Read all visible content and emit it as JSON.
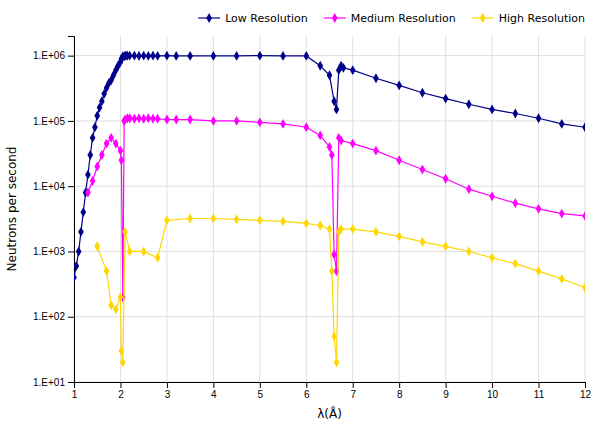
{
  "chart_data": {
    "type": "line",
    "xlabel": "λ(Å)",
    "ylabel": "Neutrons per second",
    "xlim": [
      1,
      12
    ],
    "ylim": [
      10,
      2000000
    ],
    "log": "y",
    "xticks": [
      1,
      2,
      3,
      4,
      5,
      6,
      7,
      8,
      9,
      10,
      11,
      12
    ],
    "yticks": [
      {
        "value": 10,
        "label": "1.E+01"
      },
      {
        "value": 100,
        "label": "1.E+02"
      },
      {
        "value": 1000,
        "label": "1.E+03"
      },
      {
        "value": 10000,
        "label": "1.E+04"
      },
      {
        "value": 100000,
        "label": "1.E+05"
      },
      {
        "value": 1000000,
        "label": "1.E+06"
      }
    ],
    "grid": true,
    "legend": "upper right",
    "marker": "diamond",
    "series": [
      {
        "name": "Low Resolution",
        "color": "#00008B",
        "x": [
          1.0,
          1.05,
          1.1,
          1.15,
          1.2,
          1.25,
          1.3,
          1.35,
          1.4,
          1.45,
          1.5,
          1.55,
          1.6,
          1.65,
          1.7,
          1.75,
          1.8,
          1.85,
          1.9,
          1.95,
          2.0,
          2.02,
          2.05,
          2.08,
          2.1,
          2.12,
          2.15,
          2.2,
          2.3,
          2.4,
          2.5,
          2.6,
          2.7,
          2.8,
          3.0,
          3.2,
          3.5,
          4.0,
          4.5,
          5.0,
          5.5,
          6.0,
          6.3,
          6.5,
          6.6,
          6.65,
          6.7,
          6.75,
          6.8,
          7.0,
          7.5,
          8.0,
          8.5,
          9.0,
          9.5,
          10.0,
          10.5,
          11.0,
          11.5,
          12.0
        ],
        "values": [
          400,
          600,
          1000,
          2000,
          4000,
          8000,
          15000,
          30000,
          55000,
          80000,
          120000,
          160000,
          200000,
          260000,
          320000,
          380000,
          420000,
          500000,
          600000,
          700000,
          800000,
          900000,
          970000,
          980000,
          990000,
          1000000,
          1000000,
          1000000,
          1000000,
          990000,
          1000000,
          990000,
          1000000,
          990000,
          1000000,
          990000,
          990000,
          990000,
          990000,
          1000000,
          990000,
          990000,
          700000,
          500000,
          200000,
          150000,
          600000,
          700000,
          650000,
          600000,
          450000,
          350000,
          270000,
          220000,
          180000,
          150000,
          130000,
          110000,
          90000,
          80000
        ]
      },
      {
        "name": "Medium Resolution",
        "color": "#FF00FF",
        "x": [
          1.3,
          1.4,
          1.5,
          1.6,
          1.7,
          1.8,
          1.9,
          2.0,
          2.02,
          2.05,
          2.08,
          2.1,
          2.15,
          2.2,
          2.3,
          2.4,
          2.5,
          2.6,
          2.7,
          2.8,
          3.0,
          3.2,
          3.5,
          4.0,
          4.5,
          5.0,
          5.5,
          6.0,
          6.3,
          6.5,
          6.55,
          6.6,
          6.65,
          6.7,
          6.75,
          7.0,
          7.5,
          8.0,
          8.5,
          9.0,
          9.5,
          10.0,
          10.5,
          11.0,
          11.5,
          12.0
        ],
        "values": [
          8000,
          12000,
          20000,
          30000,
          45000,
          55000,
          45000,
          35000,
          25000,
          200,
          100000,
          105000,
          110000,
          110000,
          108000,
          110000,
          108000,
          110000,
          108000,
          108000,
          105000,
          105000,
          105000,
          100000,
          100000,
          95000,
          90000,
          80000,
          60000,
          40000,
          30000,
          900,
          500,
          55000,
          50000,
          45000,
          35000,
          25000,
          18000,
          13000,
          9000,
          7000,
          5500,
          4500,
          3800,
          3500
        ]
      },
      {
        "name": "High Resolution",
        "color": "#FFD700",
        "x": [
          1.5,
          1.7,
          1.8,
          1.9,
          2.0,
          2.02,
          2.05,
          2.1,
          2.2,
          2.5,
          2.8,
          3.0,
          3.5,
          4.0,
          4.5,
          5.0,
          5.5,
          6.0,
          6.3,
          6.5,
          6.55,
          6.6,
          6.65,
          6.7,
          6.75,
          7.0,
          7.5,
          8.0,
          8.5,
          9.0,
          9.5,
          10.0,
          10.5,
          11.0,
          11.5,
          12.0
        ],
        "values": [
          1200,
          500,
          150,
          130,
          200,
          30,
          20,
          2000,
          1000,
          1000,
          800,
          3000,
          3200,
          3200,
          3100,
          3000,
          2900,
          2700,
          2500,
          2200,
          500,
          50,
          20,
          2000,
          2200,
          2200,
          2000,
          1700,
          1400,
          1200,
          1000,
          800,
          650,
          500,
          380,
          280
        ]
      }
    ]
  }
}
